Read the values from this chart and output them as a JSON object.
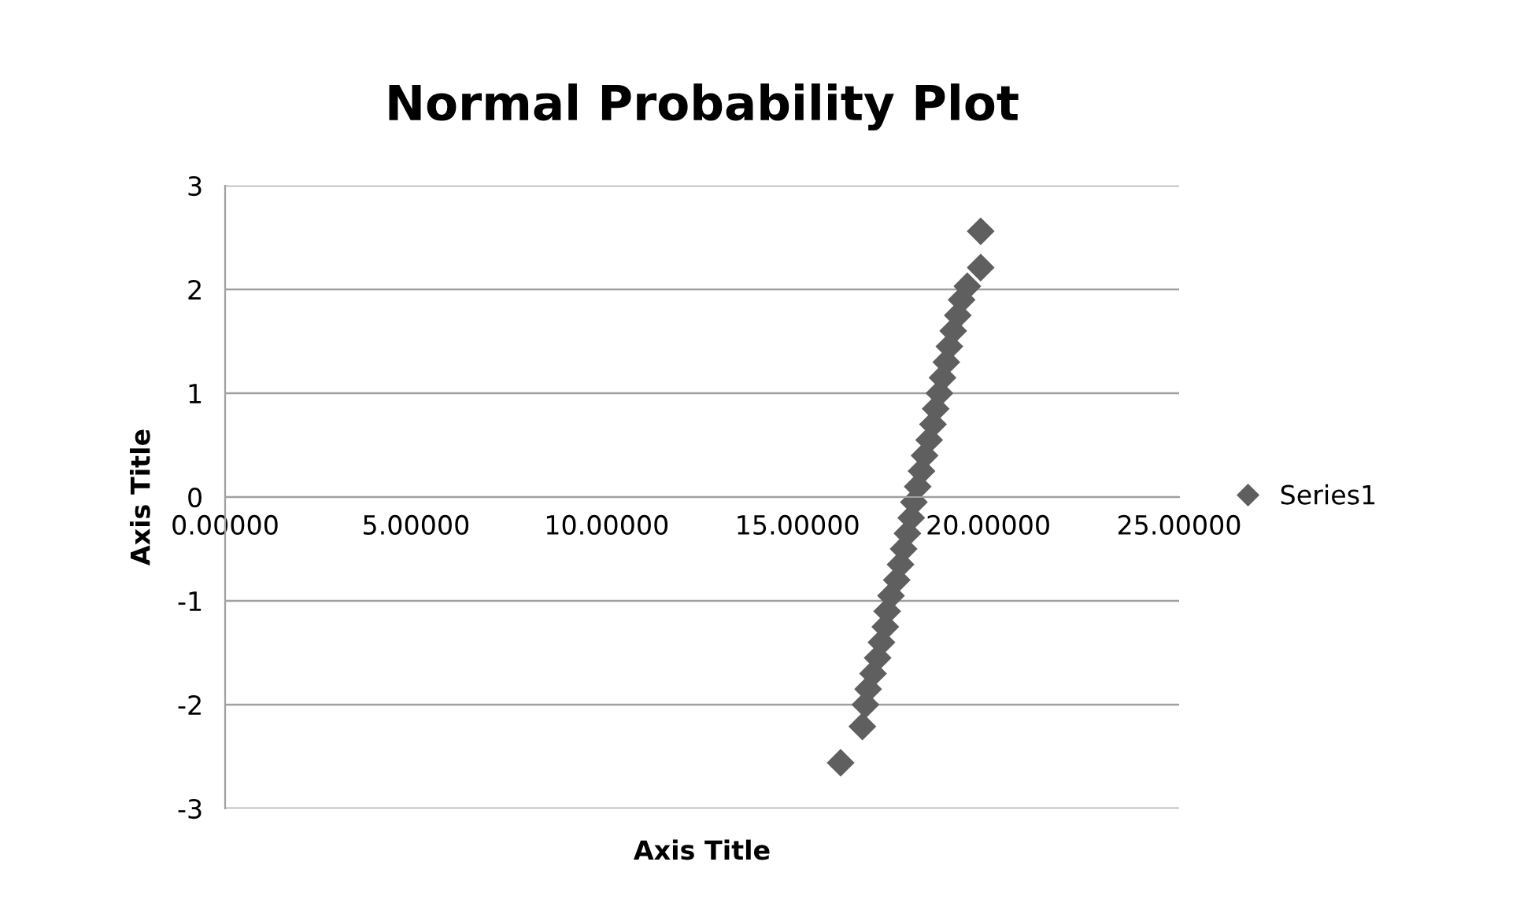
{
  "chart_data": {
    "type": "scatter",
    "title": "Normal Probability Plot",
    "xlabel": "Axis Title",
    "ylabel": "Axis Title",
    "x": [
      16.13,
      16.7,
      16.78,
      16.85,
      16.98,
      17.1,
      17.2,
      17.3,
      17.35,
      17.45,
      17.6,
      17.7,
      17.78,
      17.88,
      17.98,
      18.05,
      18.15,
      18.25,
      18.33,
      18.45,
      18.55,
      18.62,
      18.72,
      18.8,
      18.9,
      18.98,
      19.08,
      19.2,
      19.3,
      19.45,
      19.8,
      19.8
    ],
    "series": [
      {
        "name": "Series1",
        "color": "#5f5f5f",
        "values": [
          -2.56,
          -2.21,
          -2.0,
          -1.85,
          -1.7,
          -1.55,
          -1.4,
          -1.25,
          -1.1,
          -0.95,
          -0.8,
          -0.65,
          -0.5,
          -0.35,
          -0.2,
          -0.05,
          0.1,
          0.25,
          0.4,
          0.55,
          0.7,
          0.85,
          1.0,
          1.15,
          1.3,
          1.45,
          1.6,
          1.75,
          1.9,
          2.03,
          2.21,
          2.56
        ]
      }
    ],
    "xlim": [
      0,
      25
    ],
    "ylim": [
      -3,
      3
    ],
    "xticks": [
      {
        "value": 0,
        "label": "0.00000"
      },
      {
        "value": 5,
        "label": "5.00000"
      },
      {
        "value": 10,
        "label": "10.00000"
      },
      {
        "value": 15,
        "label": "15.00000"
      },
      {
        "value": 20,
        "label": "20.00000"
      },
      {
        "value": 25,
        "label": "25.00000"
      }
    ],
    "yticks": [
      -3,
      -2,
      -1,
      0,
      1,
      2,
      3
    ],
    "grid": "y",
    "legend": "right",
    "marker": "diamond"
  }
}
